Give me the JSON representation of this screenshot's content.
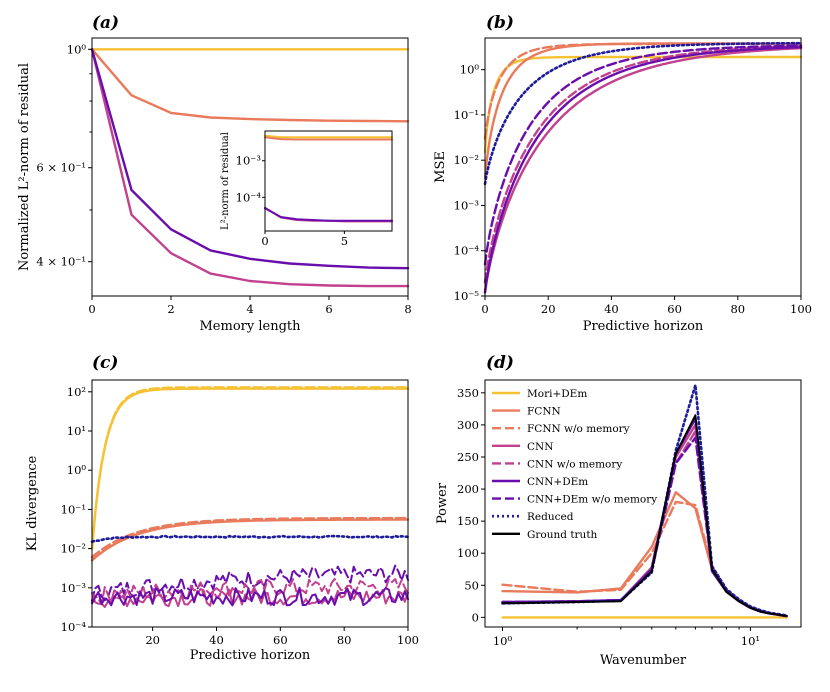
{
  "colors": {
    "mori": "#F6C235",
    "fcnn": "#E97A5C",
    "cnn": "#C1418E",
    "cnndem": "#6A0DAD",
    "reduced": "#1C1C9C",
    "truth": "#000000"
  },
  "chart_data": [
    {
      "panel": "(a)",
      "type": "line",
      "xlabel": "Memory length",
      "ylabel": "Normalized L²-norm of residual",
      "yscale": "log",
      "xlim": [
        0,
        8
      ],
      "ylim": [
        0.345,
        1.05
      ],
      "xticks": [
        "0",
        "2",
        "4",
        "6",
        "8"
      ],
      "yticks": [
        "4 × 10⁻¹",
        "6 × 10⁻¹",
        "10⁰"
      ],
      "x": [
        0,
        1,
        2,
        3,
        4,
        5,
        6,
        7,
        8
      ],
      "series": [
        {
          "name": "Mori+DEm",
          "color": "mori",
          "values": [
            1.0,
            1.0,
            1.0,
            1.0,
            1.0,
            1.0,
            1.0,
            1.0,
            1.0
          ]
        },
        {
          "name": "FCNN",
          "color": "fcnn",
          "values": [
            1.0,
            0.82,
            0.76,
            0.745,
            0.74,
            0.737,
            0.735,
            0.734,
            0.733
          ]
        },
        {
          "name": "CNN",
          "color": "cnn",
          "values": [
            1.0,
            0.49,
            0.415,
            0.38,
            0.368,
            0.363,
            0.361,
            0.36,
            0.36
          ]
        },
        {
          "name": "CNN+DEm",
          "color": "cnndem",
          "values": [
            1.0,
            0.545,
            0.46,
            0.42,
            0.405,
            0.397,
            0.393,
            0.39,
            0.389
          ]
        }
      ],
      "inset": {
        "ylabel": "L²-norm of residual",
        "xticks": [
          "0",
          "5"
        ],
        "yticks": [
          "10⁻³",
          "10⁻⁴"
        ],
        "x": [
          0,
          1,
          2,
          3,
          4,
          5,
          6,
          7,
          8
        ],
        "series": [
          {
            "name": "Mori+DEm",
            "color": "mori",
            "values": [
              0.0048,
              0.0044,
              0.0044,
              0.0044,
              0.0044,
              0.0044,
              0.0044,
              0.0044,
              0.0044
            ]
          },
          {
            "name": "FCNN",
            "color": "fcnn",
            "values": [
              0.0044,
              0.0039,
              0.0038,
              0.0038,
              0.0038,
              0.0038,
              0.0038,
              0.0038,
              0.0038
            ]
          },
          {
            "name": "CNN",
            "color": "cnn",
            "values": [
              5.2e-05,
              2.8e-05,
              2.4e-05,
              2.3e-05,
              2.3e-05,
              2.2e-05,
              2.2e-05,
              2.2e-05,
              2.2e-05
            ]
          },
          {
            "name": "CNN+DEm",
            "color": "cnndem",
            "values": [
              5e-05,
              2.9e-05,
              2.5e-05,
              2.4e-05,
              2.3e-05,
              2.3e-05,
              2.3e-05,
              2.3e-05,
              2.3e-05
            ]
          }
        ]
      }
    },
    {
      "panel": "(b)",
      "type": "line",
      "xlabel": "Predictive horizon",
      "ylabel": "MSE",
      "yscale": "log",
      "xlim": [
        0,
        100
      ],
      "ylim": [
        1e-05,
        5
      ],
      "xticks": [
        "0",
        "20",
        "40",
        "60",
        "80",
        "100"
      ],
      "yticks": [
        "10⁻⁵",
        "10⁻⁴",
        "10⁻³",
        "10⁻²",
        "10⁻¹",
        "10⁰"
      ],
      "series": [
        {
          "name": "Mori+DEm",
          "color": "mori",
          "dash": "solid",
          "a": 0.015,
          "b": 1.9,
          "tau": 1.5
        },
        {
          "name": "FCNN",
          "color": "fcnn",
          "dash": "solid",
          "a": 0.004,
          "b": 3.8,
          "tau": 3.0
        },
        {
          "name": "FCNN w/o memory",
          "color": "fcnn",
          "dash": "dashed",
          "a": 0.03,
          "b": 3.7,
          "tau": 2.6
        },
        {
          "name": "CNN",
          "color": "cnn",
          "dash": "solid",
          "a": 1.2e-05,
          "b": 3.7,
          "tau": 10.5
        },
        {
          "name": "CNN w/o memory",
          "color": "cnn",
          "dash": "dashed",
          "a": 2e-05,
          "b": 3.7,
          "tau": 9.0
        },
        {
          "name": "CNN+DEm",
          "color": "cnndem",
          "dash": "solid",
          "a": 1.2e-05,
          "b": 3.6,
          "tau": 9.3
        },
        {
          "name": "CNN+DEm w/o memory",
          "color": "cnndem",
          "dash": "dashed",
          "a": 5e-05,
          "b": 3.6,
          "tau": 7.8
        },
        {
          "name": "Reduced",
          "color": "reduced",
          "dash": "dotted",
          "a": 0.003,
          "b": 3.9,
          "tau": 6.5
        }
      ]
    },
    {
      "panel": "(c)",
      "type": "line",
      "xlabel": "Predictive horizon",
      "ylabel": "KL divergence",
      "yscale": "log",
      "xlim": [
        1,
        100
      ],
      "ylim": [
        0.0001,
        200
      ],
      "xticks": [
        "20",
        "40",
        "60",
        "80",
        "100"
      ],
      "yticks": [
        "10⁻⁴",
        "10⁻³",
        "10⁻²",
        "10⁻¹",
        "10⁰",
        "10¹",
        "10²"
      ],
      "series": [
        {
          "name": "Mori+DEm",
          "color": "mori",
          "dash": "solid",
          "start": 0.01,
          "plateau": 120,
          "tau": 4
        },
        {
          "name": "Mori+DEm w/o memory",
          "color": "mori",
          "dash": "dashed",
          "start": 0.01,
          "plateau": 130,
          "tau": 4
        },
        {
          "name": "FCNN",
          "color": "fcnn",
          "dash": "solid",
          "start": 0.005,
          "plateau": 0.055,
          "tau": 14
        },
        {
          "name": "FCNN w/o memory",
          "color": "fcnn",
          "dash": "dashed",
          "start": 0.006,
          "plateau": 0.06,
          "tau": 14
        },
        {
          "name": "Reduced",
          "color": "reduced",
          "dash": "dotted",
          "start": 0.015,
          "plateau": 0.02,
          "tau": 5
        },
        {
          "name": "CNN+DEm w/o memory",
          "color": "cnndem",
          "dash": "dashed",
          "start": 0.0007,
          "plateau": 0.0025,
          "tau": 40
        },
        {
          "name": "CNN w/o memory",
          "color": "cnn",
          "dash": "dashed",
          "start": 0.0006,
          "plateau": 0.0011,
          "tau": 30
        },
        {
          "name": "CNN",
          "color": "cnn",
          "dash": "solid",
          "start": 0.0005,
          "plateau": 0.0006,
          "tau": 20
        },
        {
          "name": "CNN+DEm",
          "color": "cnndem",
          "dash": "solid",
          "start": 0.0006,
          "plateau": 0.0006,
          "tau": 20
        }
      ]
    },
    {
      "panel": "(d)",
      "type": "line",
      "xlabel": "Wavenumber",
      "ylabel": "Power",
      "xscale": "log",
      "xlim": [
        0.85,
        16
      ],
      "ylim": [
        -15,
        370
      ],
      "xticks": [
        "10⁰",
        "10¹"
      ],
      "yticks": [
        "0",
        "50",
        "100",
        "150",
        "200",
        "250",
        "300",
        "350"
      ],
      "x": [
        1,
        2,
        3,
        4,
        5,
        6,
        7,
        8,
        9,
        10,
        11,
        12,
        13,
        14
      ],
      "series": [
        {
          "name": "Mori+DEm",
          "color": "mori",
          "dash": "solid",
          "values": [
            0,
            0,
            0,
            0,
            0,
            0,
            0,
            0,
            0,
            0,
            0,
            0,
            0,
            0
          ]
        },
        {
          "name": "FCNN",
          "color": "fcnn",
          "dash": "solid",
          "values": [
            41,
            39,
            45,
            110,
            195,
            170,
            75,
            40,
            25,
            15,
            9,
            6,
            4,
            2
          ]
        },
        {
          "name": "FCNN w/o memory",
          "color": "fcnn",
          "dash": "dashed",
          "values": [
            51,
            40,
            43,
            100,
            180,
            175,
            80,
            42,
            26,
            16,
            10,
            6,
            4,
            2
          ]
        },
        {
          "name": "CNN",
          "color": "cnn",
          "dash": "solid",
          "values": [
            23,
            25,
            26,
            78,
            250,
            300,
            75,
            40,
            25,
            15,
            9,
            6,
            4,
            2
          ]
        },
        {
          "name": "CNN w/o memory",
          "color": "cnn",
          "dash": "dashed",
          "values": [
            23,
            25,
            26,
            75,
            240,
            290,
            78,
            42,
            26,
            16,
            10,
            6,
            4,
            2
          ]
        },
        {
          "name": "CNN+DEm",
          "color": "cnndem",
          "dash": "solid",
          "values": [
            24,
            25,
            27,
            75,
            255,
            310,
            72,
            40,
            25,
            15,
            9,
            6,
            4,
            2
          ]
        },
        {
          "name": "CNN+DEm w/o memory",
          "color": "cnndem",
          "dash": "dashed",
          "values": [
            24,
            25,
            27,
            72,
            240,
            280,
            74,
            41,
            25,
            15,
            9,
            6,
            4,
            2
          ]
        },
        {
          "name": "Reduced",
          "color": "reduced",
          "dash": "dotted",
          "values": [
            22,
            24,
            26,
            70,
            260,
            362,
            80,
            44,
            28,
            17,
            11,
            7,
            5,
            3
          ]
        },
        {
          "name": "Ground truth",
          "color": "truth",
          "dash": "solid",
          "values": [
            22,
            24,
            25,
            72,
            255,
            315,
            75,
            40,
            25,
            15,
            9,
            6,
            4,
            2
          ]
        }
      ],
      "legend": {
        "position": "top-left",
        "entries": [
          {
            "label": "Mori+DEm",
            "color": "mori",
            "dash": "solid"
          },
          {
            "label": "FCNN",
            "color": "fcnn",
            "dash": "solid"
          },
          {
            "label": "FCNN w/o memory",
            "color": "fcnn",
            "dash": "dashed"
          },
          {
            "label": "CNN",
            "color": "cnn",
            "dash": "solid"
          },
          {
            "label": "CNN w/o memory",
            "color": "cnn",
            "dash": "dashed"
          },
          {
            "label": "CNN+DEm",
            "color": "cnndem",
            "dash": "solid"
          },
          {
            "label": "CNN+DEm w/o memory",
            "color": "cnndem",
            "dash": "dashed"
          },
          {
            "label": "Reduced",
            "color": "reduced",
            "dash": "dotted"
          },
          {
            "label": "Ground truth",
            "color": "truth",
            "dash": "solid"
          }
        ]
      }
    }
  ]
}
